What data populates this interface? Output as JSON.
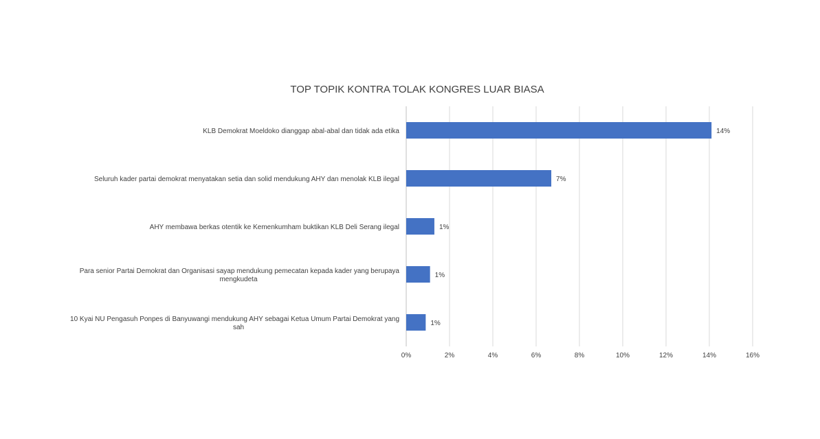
{
  "chart_data": {
    "type": "bar",
    "orientation": "horizontal",
    "title": "TOP TOPIK KONTRA TOLAK KONGRES LUAR BIASA",
    "categories": [
      [
        "KLB Demokrat Moeldoko dianggap abal-abal dan tidak ada etika"
      ],
      [
        "Seluruh kader partai demokrat menyatakan setia dan solid mendukung AHY dan menolak KLB ilegal"
      ],
      [
        "AHY membawa berkas otentik ke Kemenkumham buktikan KLB Deli Serang ilegal"
      ],
      [
        "Para senior Partai Demokrat dan Organisasi sayap mendukung pemecatan kepada kader yang berupaya",
        "mengkudeta"
      ],
      [
        "10 Kyai NU Pengasuh Ponpes di Banyuwangi mendukung AHY sebagai Ketua Umum Partai Demokrat yang",
        "sah"
      ]
    ],
    "values": [
      14.1,
      6.7,
      1.3,
      1.1,
      0.9
    ],
    "data_labels": [
      "14%",
      "7%",
      "1%",
      "1%",
      "1%"
    ],
    "xlim": [
      0,
      16
    ],
    "x_ticks": [
      "0%",
      "2%",
      "4%",
      "6%",
      "8%",
      "10%",
      "12%",
      "14%",
      "16%"
    ],
    "grid": true,
    "legend": "none",
    "bar_color": "#4472C4"
  }
}
